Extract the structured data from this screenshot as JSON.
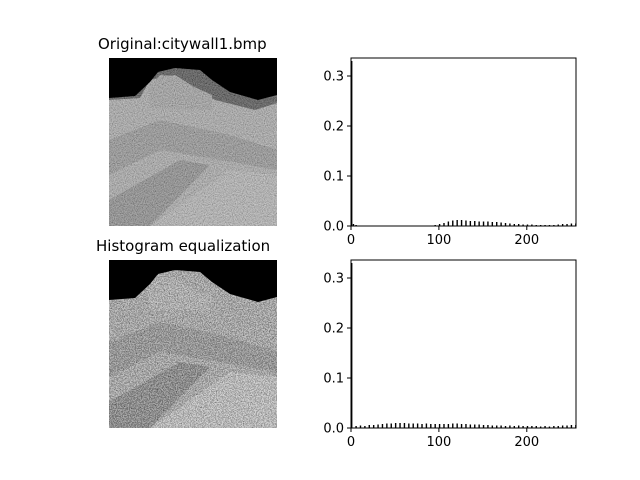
{
  "titles": {
    "original": "Original:citywall1.bmp",
    "equalized": "Histogram equalization"
  },
  "chart_data": [
    {
      "type": "bar",
      "panel": "original-histogram",
      "title": "",
      "xlabel": "",
      "ylabel": "",
      "xlim": [
        0,
        256
      ],
      "ylim": [
        0,
        0.336
      ],
      "xticks": [
        "0",
        "100",
        "200"
      ],
      "yticks": [
        "0.0",
        "0.1",
        "0.2",
        "0.3"
      ],
      "grid": false,
      "notes": "Spike at gray level 0 of about 0.33; remaining mass spread roughly over 90-255, peak near 120 (~0.012).",
      "points": [
        [
          0,
          0.33
        ],
        [
          2,
          0.004
        ],
        [
          5,
          0.002
        ],
        [
          90,
          0.001
        ],
        [
          95,
          0.002
        ],
        [
          100,
          0.004
        ],
        [
          105,
          0.006
        ],
        [
          110,
          0.009
        ],
        [
          115,
          0.011
        ],
        [
          120,
          0.012
        ],
        [
          125,
          0.012
        ],
        [
          130,
          0.011
        ],
        [
          135,
          0.01
        ],
        [
          140,
          0.01
        ],
        [
          145,
          0.009
        ],
        [
          150,
          0.009
        ],
        [
          155,
          0.009
        ],
        [
          160,
          0.008
        ],
        [
          165,
          0.008
        ],
        [
          170,
          0.007
        ],
        [
          175,
          0.006
        ],
        [
          180,
          0.005
        ],
        [
          185,
          0.004
        ],
        [
          190,
          0.004
        ],
        [
          195,
          0.003
        ],
        [
          200,
          0.003
        ],
        [
          205,
          0.003
        ],
        [
          210,
          0.002
        ],
        [
          215,
          0.002
        ],
        [
          220,
          0.002
        ],
        [
          225,
          0.002
        ],
        [
          230,
          0.002
        ],
        [
          235,
          0.003
        ],
        [
          240,
          0.004
        ],
        [
          245,
          0.004
        ],
        [
          250,
          0.005
        ],
        [
          255,
          0.005
        ]
      ]
    },
    {
      "type": "bar",
      "panel": "equalized-histogram",
      "title": "",
      "xlabel": "",
      "ylabel": "",
      "xlim": [
        0,
        256
      ],
      "ylim": [
        0,
        0.336
      ],
      "xticks": [
        "0",
        "100",
        "200"
      ],
      "yticks": [
        "0.0",
        "0.1",
        "0.2",
        "0.3"
      ],
      "grid": false,
      "notes": "Spike at gray level 0 of about 0.33; remaining values spread fairly evenly across 5-255 at roughly 0.004-0.01.",
      "points": [
        [
          0,
          0.33
        ],
        [
          5,
          0.004
        ],
        [
          10,
          0.005
        ],
        [
          15,
          0.004
        ],
        [
          20,
          0.006
        ],
        [
          25,
          0.006
        ],
        [
          30,
          0.007
        ],
        [
          35,
          0.008
        ],
        [
          40,
          0.009
        ],
        [
          45,
          0.009
        ],
        [
          50,
          0.01
        ],
        [
          55,
          0.01
        ],
        [
          60,
          0.01
        ],
        [
          65,
          0.009
        ],
        [
          70,
          0.009
        ],
        [
          75,
          0.009
        ],
        [
          80,
          0.008
        ],
        [
          85,
          0.009
        ],
        [
          90,
          0.008
        ],
        [
          95,
          0.008
        ],
        [
          100,
          0.008
        ],
        [
          105,
          0.008
        ],
        [
          110,
          0.008
        ],
        [
          115,
          0.009
        ],
        [
          120,
          0.009
        ],
        [
          125,
          0.008
        ],
        [
          130,
          0.008
        ],
        [
          135,
          0.007
        ],
        [
          140,
          0.007
        ],
        [
          145,
          0.007
        ],
        [
          150,
          0.006
        ],
        [
          155,
          0.006
        ],
        [
          160,
          0.005
        ],
        [
          165,
          0.005
        ],
        [
          170,
          0.005
        ],
        [
          175,
          0.004
        ],
        [
          180,
          0.005
        ],
        [
          185,
          0.004
        ],
        [
          190,
          0.005
        ],
        [
          195,
          0.004
        ],
        [
          200,
          0.004
        ],
        [
          205,
          0.004
        ],
        [
          210,
          0.004
        ],
        [
          215,
          0.003
        ],
        [
          220,
          0.004
        ],
        [
          225,
          0.003
        ],
        [
          230,
          0.004
        ],
        [
          235,
          0.004
        ],
        [
          240,
          0.005
        ],
        [
          245,
          0.005
        ],
        [
          250,
          0.006
        ],
        [
          255,
          0.006
        ]
      ]
    }
  ]
}
